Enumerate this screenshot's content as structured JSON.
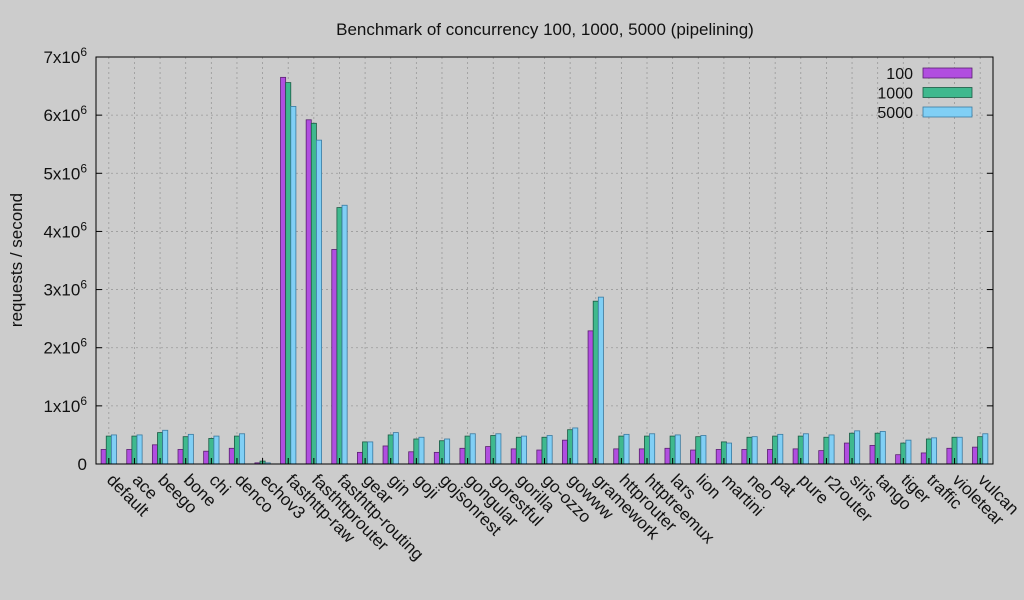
{
  "chart_data": {
    "type": "bar",
    "title": "Benchmark of concurrency 100, 1000, 5000 (pipelining)",
    "xlabel": "",
    "ylabel": "requests / second",
    "ylim": [
      0,
      7000000
    ],
    "yticks": [
      {
        "value": 0,
        "label": "0"
      },
      {
        "value": 1000000,
        "label": "1x10",
        "exp": "6"
      },
      {
        "value": 2000000,
        "label": "2x10",
        "exp": "6"
      },
      {
        "value": 3000000,
        "label": "3x10",
        "exp": "6"
      },
      {
        "value": 4000000,
        "label": "4x10",
        "exp": "6"
      },
      {
        "value": 5000000,
        "label": "5x10",
        "exp": "6"
      },
      {
        "value": 6000000,
        "label": "6x10",
        "exp": "6"
      },
      {
        "value": 7000000,
        "label": "7x10",
        "exp": "6"
      }
    ],
    "grid": true,
    "legend_position": "top-right",
    "categories": [
      "default",
      "ace",
      "beego",
      "bone",
      "chi",
      "denco",
      "echov3",
      "fasthttp-raw",
      "fasthttprouter",
      "fasthttp-routing",
      "gear",
      "gin",
      "goji",
      "gojsonrest",
      "gongular",
      "gorestful",
      "gorilla",
      "go-ozzo",
      "gowww",
      "gramework",
      "httprouter",
      "httptreemux",
      "lars",
      "lion",
      "martini",
      "neo",
      "pat",
      "pure",
      "r2router",
      "siris",
      "tango",
      "tiger",
      "traffic",
      "violetear",
      "vulcan"
    ],
    "series": [
      {
        "name": "100",
        "color": "#b14ee0",
        "edge": "#5a2070",
        "values": [
          250000,
          250000,
          330000,
          250000,
          220000,
          270000,
          20000,
          6650000,
          5920000,
          3690000,
          200000,
          310000,
          210000,
          200000,
          270000,
          300000,
          260000,
          240000,
          410000,
          2290000,
          260000,
          260000,
          270000,
          240000,
          250000,
          250000,
          250000,
          260000,
          230000,
          360000,
          320000,
          160000,
          190000,
          270000,
          290000
        ]
      },
      {
        "name": "1000",
        "color": "#3fb98e",
        "edge": "#1c5a44",
        "values": [
          480000,
          480000,
          540000,
          470000,
          440000,
          480000,
          50000,
          6560000,
          5860000,
          4410000,
          380000,
          500000,
          430000,
          400000,
          480000,
          490000,
          460000,
          460000,
          590000,
          2800000,
          480000,
          480000,
          480000,
          470000,
          380000,
          460000,
          480000,
          480000,
          460000,
          530000,
          530000,
          360000,
          430000,
          460000,
          470000
        ]
      },
      {
        "name": "5000",
        "color": "#80cff5",
        "edge": "#3a7aa0",
        "values": [
          500000,
          500000,
          580000,
          510000,
          480000,
          520000,
          20000,
          6150000,
          5570000,
          4450000,
          380000,
          540000,
          460000,
          430000,
          520000,
          520000,
          480000,
          490000,
          620000,
          2870000,
          510000,
          520000,
          500000,
          490000,
          360000,
          470000,
          510000,
          520000,
          500000,
          570000,
          560000,
          410000,
          450000,
          460000,
          520000
        ]
      }
    ]
  }
}
